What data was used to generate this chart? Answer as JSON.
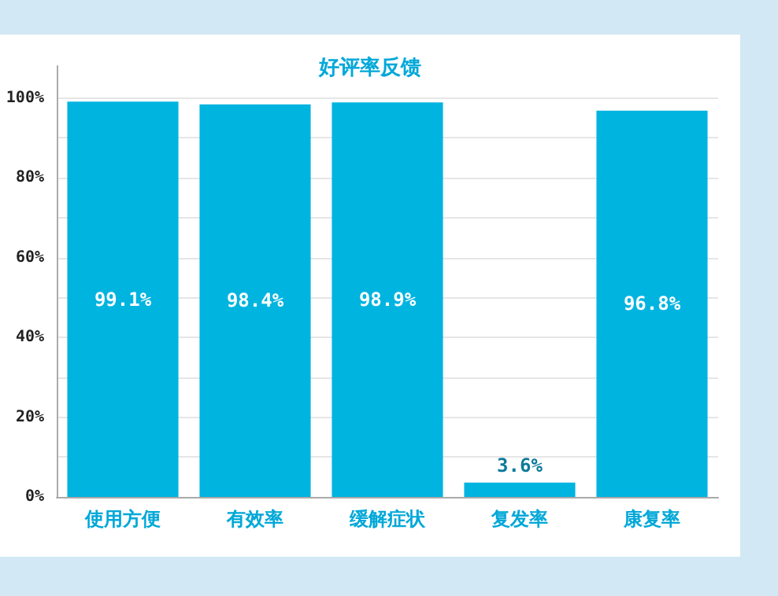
{
  "chart_data": {
    "type": "bar",
    "title": "好评率反馈",
    "categories": [
      "使用方便",
      "有效率",
      "缓解症状",
      "复发率",
      "康复率"
    ],
    "values": [
      99.1,
      98.4,
      98.9,
      3.6,
      96.8
    ],
    "value_labels": [
      "99.1%",
      "98.4%",
      "98.9%",
      "3.6%",
      "96.8%"
    ],
    "color": "#00b4e0",
    "ylim": [
      0,
      108
    ],
    "yticks": [
      {
        "value": 0,
        "label": "0%"
      },
      {
        "value": 10,
        "label": null
      },
      {
        "value": 20,
        "label": "20%"
      },
      {
        "value": 30,
        "label": null
      },
      {
        "value": 40,
        "label": "40%"
      },
      {
        "value": 50,
        "label": null
      },
      {
        "value": 60,
        "label": "60%"
      },
      {
        "value": 70,
        "label": null
      },
      {
        "value": 80,
        "label": "80%"
      },
      {
        "value": 90,
        "label": null
      },
      {
        "value": 100,
        "label": "100%"
      }
    ],
    "grid": true
  }
}
